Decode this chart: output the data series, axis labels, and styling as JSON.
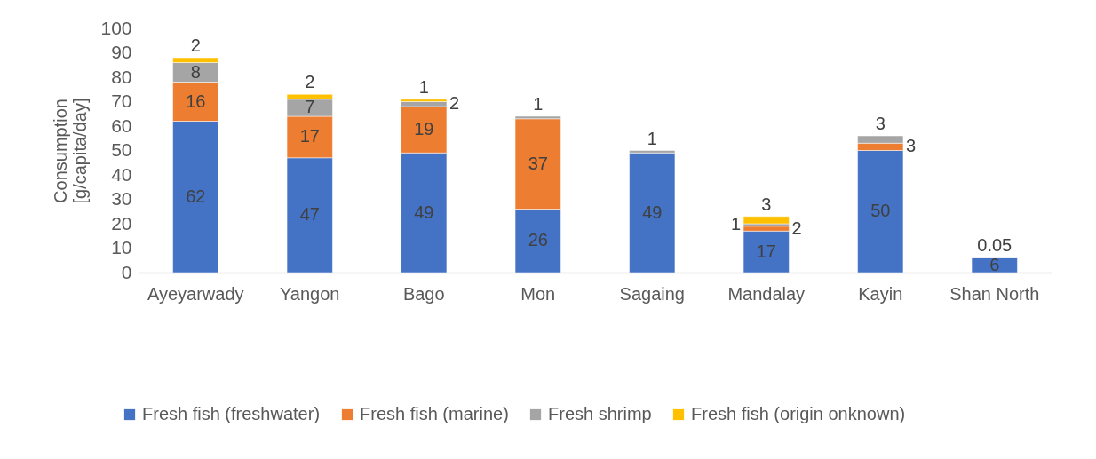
{
  "chart_data": {
    "type": "bar",
    "stacked": true,
    "ylabel": "Consumption\n[g/capita/day]",
    "categories": [
      "Ayeyarwady",
      "Yangon",
      "Bago",
      "Mon",
      "Sagaing",
      "Mandalay",
      "Kayin",
      "Shan North"
    ],
    "series": [
      {
        "name": "Fresh fish (freshwater)",
        "color": "#4472c4",
        "values": [
          62,
          47,
          49,
          26,
          49,
          17,
          50,
          6
        ]
      },
      {
        "name": "Fresh fish (marine)",
        "color": "#ed7d31",
        "values": [
          16,
          17,
          19,
          37,
          null,
          2,
          3,
          null
        ]
      },
      {
        "name": "Fresh shrimp",
        "color": "#a5a5a5",
        "values": [
          8,
          7,
          2,
          1,
          1,
          1,
          3,
          0.05
        ]
      },
      {
        "name": "Fresh fish (origin onknown)",
        "color": "#ffc000",
        "values": [
          2,
          2,
          1,
          null,
          null,
          3,
          null,
          null
        ]
      }
    ],
    "ylim": [
      0,
      100
    ],
    "yticks": [
      0,
      10,
      20,
      30,
      40,
      50,
      60,
      70,
      80,
      90,
      100
    ],
    "grid": false,
    "legend": "bottom",
    "data_labels": true
  }
}
